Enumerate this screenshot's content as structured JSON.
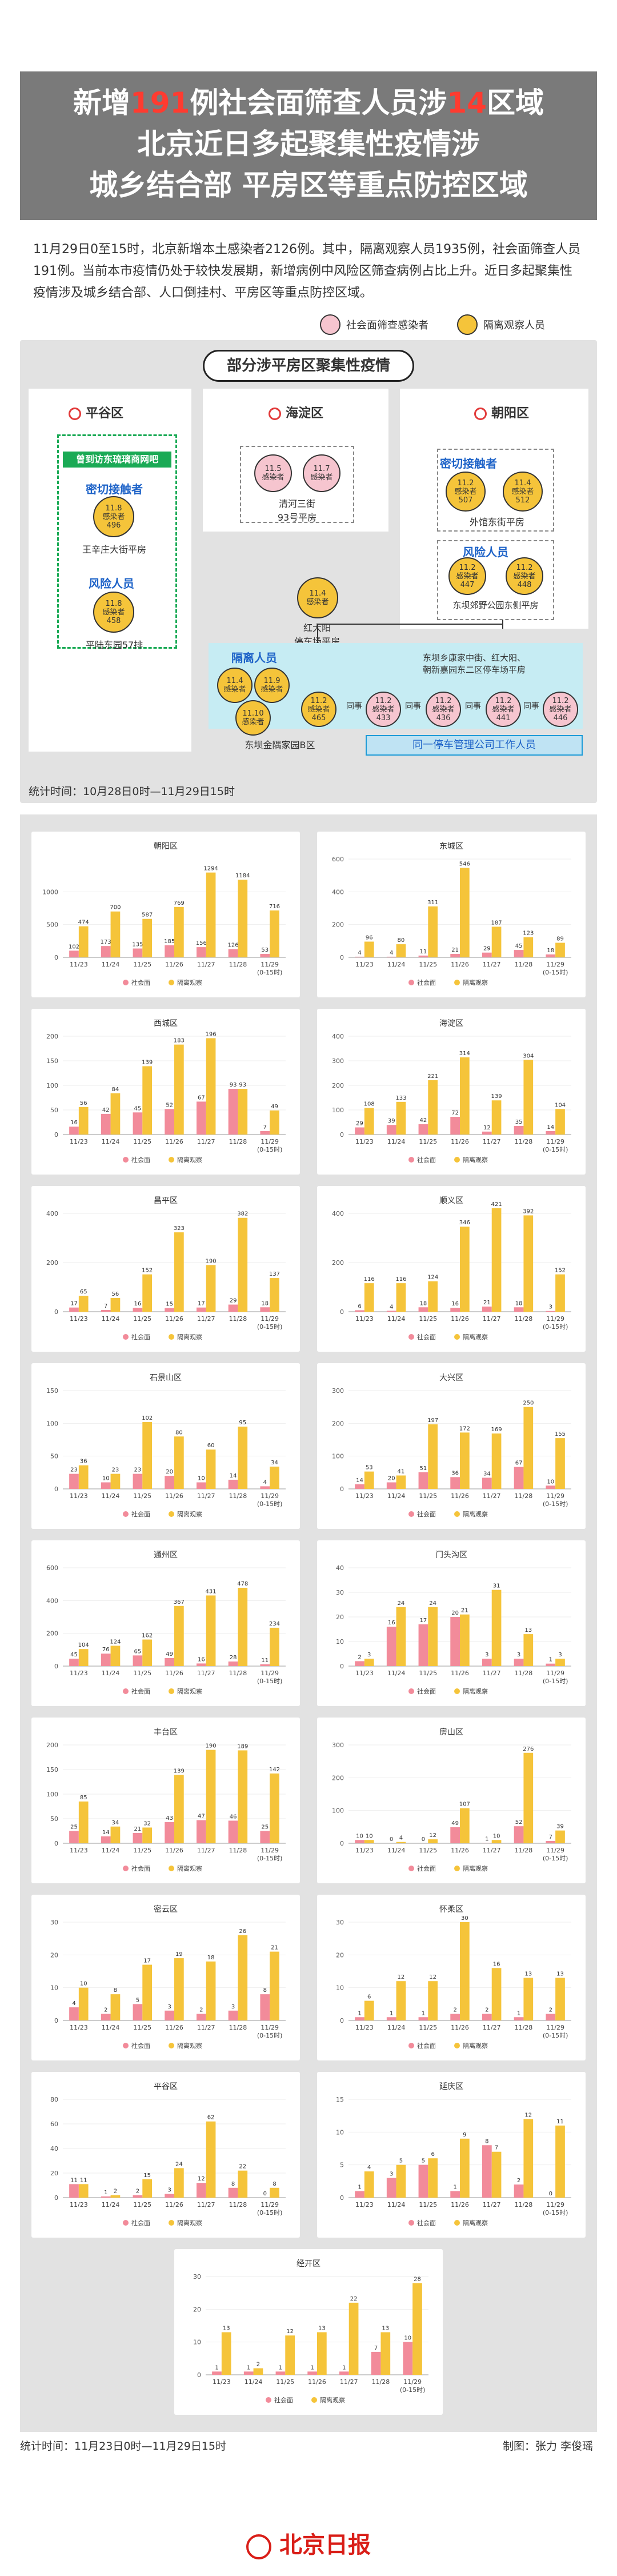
{
  "header": {
    "title_l1_a": "新增",
    "title_l1_n1": "191",
    "title_l1_b": "例社会面筛查人员涉",
    "title_l1_n2": "14",
    "title_l1_c": "区域",
    "title_l2": "北京近日多起聚集性疫情涉",
    "title_l3": "城乡结合部 平房区等重点防控区域"
  },
  "intro": "11月29日0至15时，北京新增本土感染者2126例。其中，隔离观察人员1935例，社会面筛查人员191例。当前本市疫情仍处于较快发展期，新增病例中风险区筛查病例占比上升。近日多起聚集性疫情涉及城乡结合部、人口倒挂村、平房区等重点防控区域。",
  "legend": {
    "pink": "社会面筛查感染者",
    "yellow": "隔离观察人员"
  },
  "cluster": {
    "title": "部分涉平房区聚集性疫情",
    "pinggu": {
      "name": "平谷区",
      "green_tag": "曾到访东琉璃商网吧",
      "close_contact": "密切接触者",
      "n1": "11.8\n感染者\n496",
      "cap1": "王辛庄大街平房",
      "risk": "风险人员",
      "n2": "11.8\n感染者\n458",
      "cap2": "平陆东园57排"
    },
    "haidian": {
      "name": "海淀区",
      "n1": "11.5\n感染者",
      "n2": "11.7\n感染者",
      "cap": "清河三街\n93号平房"
    },
    "chaoyang": {
      "name": "朝阳区",
      "close_contact": "密切接触者",
      "n1": "11.2\n感染者\n507",
      "n2": "11.4\n感染者\n512",
      "cap1": "外馆东街平房",
      "risk": "风险人员",
      "n3": "11.2\n感染者\n447",
      "n4": "11.2\n感染者\n448",
      "cap2": "东坝郊野公园东侧平房"
    },
    "hub": {
      "n": "11.4\n感染者",
      "cap": "红大阳\n停车场平房"
    },
    "quarantine": "隔离人员",
    "q_nodes": [
      "11.4\n感染者",
      "11.9\n感染者",
      "11.10\n感染者"
    ],
    "q_cap": "东坝金隅家园B区",
    "chain_cap": "东坝乡康家中街、红大阳、\n朝新嘉园东二区停车场平房",
    "chain_nodes": [
      "11.2\n感染者\n465",
      "11.2\n感染者\n433",
      "11.2\n感染者\n436",
      "11.2\n感染者\n441",
      "11.2\n感染者\n446"
    ],
    "chain_links": [
      "同事",
      "同事",
      "同事",
      "同事"
    ],
    "chain_bar": "同一停车管理公司工作人员",
    "stat_time": "统计时间：10月28日0时—11月29日15时"
  },
  "legend_chart": {
    "a": "社会面",
    "b": "隔离观察"
  },
  "chart_data": [
    {
      "type": "bar",
      "title": "朝阳区",
      "categories": [
        "11/23",
        "11/24",
        "11/25",
        "11/26",
        "11/27",
        "11/28",
        "11/29\n(0-15时)"
      ],
      "series": [
        {
          "name": "社会面",
          "values": [
            102,
            173,
            135,
            185,
            156,
            126,
            53
          ]
        },
        {
          "name": "隔离观察",
          "values": [
            474,
            700,
            587,
            769,
            1294,
            1184,
            716
          ]
        }
      ],
      "ylim": [
        0,
        1500
      ],
      "yticks": [
        0,
        500,
        1000
      ]
    },
    {
      "type": "bar",
      "title": "东城区",
      "categories": [
        "11/23",
        "11/24",
        "11/25",
        "11/26",
        "11/27",
        "11/28",
        "11/29\n(0-15时)"
      ],
      "series": [
        {
          "name": "社会面",
          "values": [
            4,
            4,
            11,
            21,
            29,
            45,
            18
          ]
        },
        {
          "name": "隔离观察",
          "values": [
            96,
            80,
            311,
            546,
            187,
            123,
            89
          ]
        }
      ],
      "ylim": [
        0,
        600
      ],
      "yticks": [
        0,
        200,
        400,
        600
      ]
    },
    {
      "type": "bar",
      "title": "西城区",
      "categories": [
        "11/23",
        "11/24",
        "11/25",
        "11/26",
        "11/27",
        "11/28",
        "11/29\n(0-15时)"
      ],
      "series": [
        {
          "name": "社会面",
          "values": [
            16,
            42,
            45,
            52,
            67,
            93,
            7
          ]
        },
        {
          "name": "隔离观察",
          "values": [
            56,
            84,
            139,
            183,
            196,
            93,
            49
          ]
        }
      ],
      "ylim": [
        0,
        200
      ],
      "yticks": [
        0,
        50,
        100,
        150,
        200
      ]
    },
    {
      "type": "bar",
      "title": "海淀区",
      "categories": [
        "11/23",
        "11/24",
        "11/25",
        "11/26",
        "11/27",
        "11/28",
        "11/29\n(0-15时)"
      ],
      "series": [
        {
          "name": "社会面",
          "values": [
            29,
            39,
            42,
            72,
            12,
            35,
            14
          ]
        },
        {
          "name": "隔离观察",
          "values": [
            108,
            133,
            221,
            314,
            139,
            304,
            104
          ]
        }
      ],
      "ylim": [
        0,
        400
      ],
      "yticks": [
        0,
        100,
        200,
        300,
        400
      ]
    },
    {
      "type": "bar",
      "title": "昌平区",
      "categories": [
        "11/23",
        "11/24",
        "11/25",
        "11/26",
        "11/27",
        "11/28",
        "11/29\n(0-15时)"
      ],
      "series": [
        {
          "name": "社会面",
          "values": [
            17,
            7,
            16,
            15,
            17,
            29,
            18
          ]
        },
        {
          "name": "隔离观察",
          "values": [
            65,
            56,
            152,
            323,
            190,
            382,
            137
          ]
        }
      ],
      "ylim": [
        0,
        400
      ],
      "yticks": [
        0,
        200,
        400
      ]
    },
    {
      "type": "bar",
      "title": "顺义区",
      "categories": [
        "11/23",
        "11/24",
        "11/25",
        "11/26",
        "11/27",
        "11/28",
        "11/29\n(0-15时)"
      ],
      "series": [
        {
          "name": "社会面",
          "values": [
            6,
            4,
            18,
            16,
            21,
            18,
            3
          ]
        },
        {
          "name": "隔离观察",
          "values": [
            116,
            116,
            124,
            346,
            421,
            392,
            152
          ]
        }
      ],
      "ylim": [
        0,
        400
      ],
      "yticks": [
        0,
        200,
        400
      ]
    },
    {
      "type": "bar",
      "title": "石景山区",
      "categories": [
        "11/23",
        "11/24",
        "11/25",
        "11/26",
        "11/27",
        "11/28",
        "11/29\n(0-15时)"
      ],
      "series": [
        {
          "name": "社会面",
          "values": [
            23,
            10,
            23,
            20,
            10,
            14,
            4
          ]
        },
        {
          "name": "隔离观察",
          "values": [
            36,
            23,
            102,
            80,
            60,
            95,
            34
          ]
        }
      ],
      "ylim": [
        0,
        150
      ],
      "yticks": [
        0,
        50,
        100,
        150
      ]
    },
    {
      "type": "bar",
      "title": "大兴区",
      "categories": [
        "11/23",
        "11/24",
        "11/25",
        "11/26",
        "11/27",
        "11/28",
        "11/29\n(0-15时)"
      ],
      "series": [
        {
          "name": "社会面",
          "values": [
            14,
            20,
            51,
            36,
            34,
            67,
            10
          ]
        },
        {
          "name": "隔离观察",
          "values": [
            53,
            41,
            197,
            172,
            169,
            250,
            155
          ]
        }
      ],
      "ylim": [
        0,
        300
      ],
      "yticks": [
        0,
        100,
        200,
        300
      ]
    },
    {
      "type": "bar",
      "title": "通州区",
      "categories": [
        "11/23",
        "11/24",
        "11/25",
        "11/26",
        "11/27",
        "11/28",
        "11/29\n(0-15时)"
      ],
      "series": [
        {
          "name": "社会面",
          "values": [
            45,
            76,
            65,
            49,
            16,
            28,
            11
          ]
        },
        {
          "name": "隔离观察",
          "values": [
            104,
            124,
            162,
            367,
            431,
            478,
            234
          ]
        }
      ],
      "ylim": [
        0,
        600
      ],
      "yticks": [
        0,
        200,
        400,
        600
      ]
    },
    {
      "type": "bar",
      "title": "门头沟区",
      "categories": [
        "11/23",
        "11/24",
        "11/25",
        "11/26",
        "11/27",
        "11/28",
        "11/29\n(0-15时)"
      ],
      "series": [
        {
          "name": "社会面",
          "values": [
            2,
            16,
            17,
            20,
            3,
            3,
            1
          ]
        },
        {
          "name": "隔离观察",
          "values": [
            3,
            24,
            24,
            21,
            31,
            13,
            3
          ]
        }
      ],
      "ylim": [
        0,
        40
      ],
      "yticks": [
        0,
        10,
        20,
        30,
        40
      ]
    },
    {
      "type": "bar",
      "title": "丰台区",
      "categories": [
        "11/23",
        "11/24",
        "11/25",
        "11/26",
        "11/27",
        "11/28",
        "11/29\n(0-15时)"
      ],
      "series": [
        {
          "name": "社会面",
          "values": [
            25,
            14,
            21,
            43,
            47,
            46,
            25
          ]
        },
        {
          "name": "隔离观察",
          "values": [
            85,
            34,
            32,
            139,
            190,
            189,
            142
          ]
        }
      ],
      "ylim": [
        0,
        200
      ],
      "yticks": [
        0,
        50,
        100,
        150,
        200
      ]
    },
    {
      "type": "bar",
      "title": "房山区",
      "categories": [
        "11/23",
        "11/24",
        "11/25",
        "11/26",
        "11/27",
        "11/28",
        "11/29\n(0-15时)"
      ],
      "series": [
        {
          "name": "社会面",
          "values": [
            10,
            0,
            0,
            49,
            1,
            52,
            7
          ]
        },
        {
          "name": "隔离观察",
          "values": [
            10,
            4,
            12,
            107,
            10,
            276,
            39
          ]
        }
      ],
      "ylim": [
        0,
        300
      ],
      "yticks": [
        0,
        100,
        200,
        300
      ]
    },
    {
      "type": "bar",
      "title": "密云区",
      "categories": [
        "11/23",
        "11/24",
        "11/25",
        "11/26",
        "11/27",
        "11/28",
        "11/29\n(0-15时)"
      ],
      "series": [
        {
          "name": "社会面",
          "values": [
            4,
            2,
            5,
            3,
            2,
            3,
            8
          ]
        },
        {
          "name": "隔离观察",
          "values": [
            10,
            8,
            17,
            19,
            18,
            26,
            21
          ]
        }
      ],
      "ylim": [
        0,
        30
      ],
      "yticks": [
        0,
        10,
        20,
        30
      ]
    },
    {
      "type": "bar",
      "title": "怀柔区",
      "categories": [
        "11/23",
        "11/24",
        "11/25",
        "11/26",
        "11/27",
        "11/28",
        "11/29\n(0-15时)"
      ],
      "series": [
        {
          "name": "社会面",
          "values": [
            1,
            1,
            1,
            2,
            2,
            1,
            2
          ]
        },
        {
          "name": "隔离观察",
          "values": [
            6,
            12,
            12,
            30,
            16,
            13,
            13
          ]
        }
      ],
      "ylim": [
        0,
        30
      ],
      "yticks": [
        0,
        10,
        20,
        30
      ]
    },
    {
      "type": "bar",
      "title": "平谷区",
      "categories": [
        "11/23",
        "11/24",
        "11/25",
        "11/26",
        "11/27",
        "11/28",
        "11/29\n(0-15时)"
      ],
      "series": [
        {
          "name": "社会面",
          "values": [
            11,
            1,
            2,
            3,
            12,
            8,
            0
          ]
        },
        {
          "name": "隔离观察",
          "values": [
            11,
            2,
            15,
            24,
            62,
            22,
            8
          ]
        }
      ],
      "ylim": [
        0,
        80
      ],
      "yticks": [
        0,
        20,
        40,
        60,
        80
      ]
    },
    {
      "type": "bar",
      "title": "延庆区",
      "categories": [
        "11/23",
        "11/24",
        "11/25",
        "11/26",
        "11/27",
        "11/28",
        "11/29\n(0-15时)"
      ],
      "series": [
        {
          "name": "社会面",
          "values": [
            1,
            3,
            5,
            1,
            8,
            2,
            0
          ]
        },
        {
          "name": "隔离观察",
          "values": [
            4,
            5,
            6,
            9,
            7,
            12,
            11
          ]
        }
      ],
      "ylim": [
        0,
        15
      ],
      "yticks": [
        0,
        5,
        10,
        15
      ]
    },
    {
      "type": "bar",
      "title": "经开区",
      "categories": [
        "11/23",
        "11/24",
        "11/25",
        "11/26",
        "11/27",
        "11/28",
        "11/29\n(0-15时)"
      ],
      "series": [
        {
          "name": "社会面",
          "values": [
            1,
            1,
            1,
            1,
            1,
            7,
            10
          ]
        },
        {
          "name": "隔离观察",
          "values": [
            13,
            2,
            12,
            13,
            22,
            13,
            28
          ]
        }
      ],
      "ylim": [
        0,
        30
      ],
      "yticks": [
        0,
        10,
        20,
        30
      ]
    }
  ],
  "footer": {
    "stat_time": "统计时间：11月23日0时—11月29日15时",
    "credit": "制图：张力 李俊瑶",
    "logo": "北京日报"
  },
  "colors": {
    "red": "#ff3b30",
    "pink": "#f28b9a",
    "yellow": "#f5c43a",
    "gray": "#7a7a7a"
  }
}
